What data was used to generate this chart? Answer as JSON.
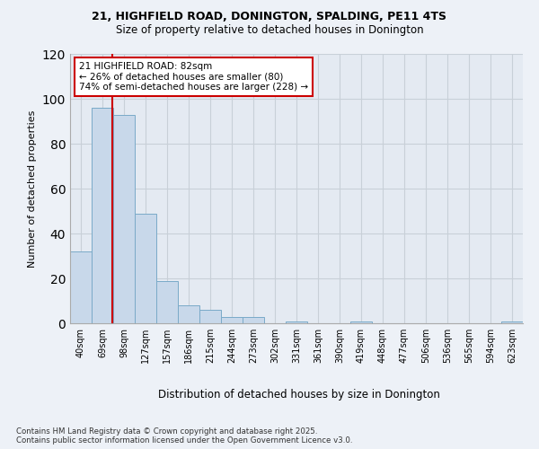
{
  "title1": "21, HIGHFIELD ROAD, DONINGTON, SPALDING, PE11 4TS",
  "title2": "Size of property relative to detached houses in Donington",
  "xlabel": "Distribution of detached houses by size in Donington",
  "ylabel": "Number of detached properties",
  "categories": [
    "40sqm",
    "69sqm",
    "98sqm",
    "127sqm",
    "157sqm",
    "186sqm",
    "215sqm",
    "244sqm",
    "273sqm",
    "302sqm",
    "331sqm",
    "361sqm",
    "390sqm",
    "419sqm",
    "448sqm",
    "477sqm",
    "506sqm",
    "536sqm",
    "565sqm",
    "594sqm",
    "623sqm"
  ],
  "values": [
    32,
    96,
    93,
    49,
    19,
    8,
    6,
    3,
    3,
    0,
    1,
    0,
    0,
    1,
    0,
    0,
    0,
    0,
    0,
    0,
    1
  ],
  "bar_color": "#c8d8ea",
  "bar_edge_color": "#7aaac8",
  "grid_color": "#c8d0d8",
  "property_line_x": 1.45,
  "annotation_text": "21 HIGHFIELD ROAD: 82sqm\n← 26% of detached houses are smaller (80)\n74% of semi-detached houses are larger (228) →",
  "annotation_box_color": "#ffffff",
  "annotation_box_edge_color": "#cc0000",
  "redline_color": "#cc0000",
  "footer": "Contains HM Land Registry data © Crown copyright and database right 2025.\nContains public sector information licensed under the Open Government Licence v3.0.",
  "ylim": [
    0,
    120
  ],
  "yticks": [
    0,
    20,
    40,
    60,
    80,
    100,
    120
  ],
  "background_color": "#edf1f7",
  "plot_background": "#e4eaf2"
}
